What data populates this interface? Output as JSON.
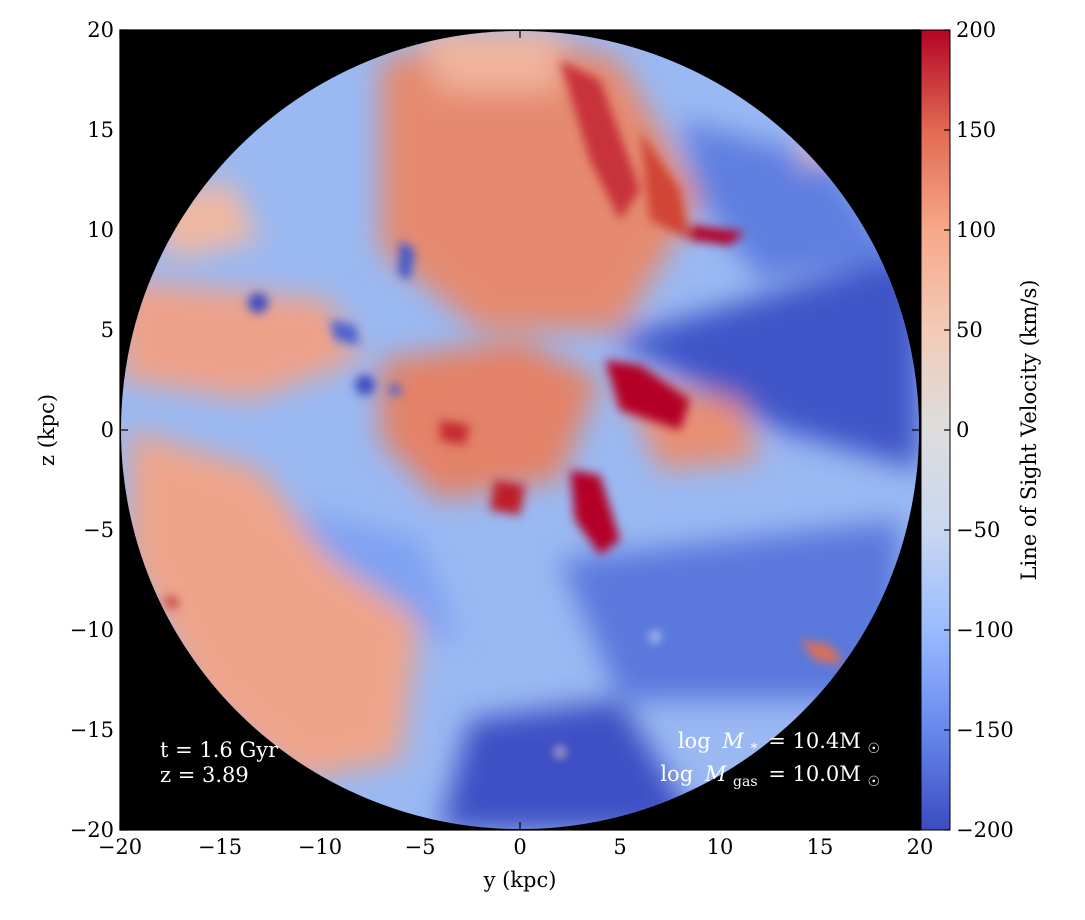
{
  "chart_data": {
    "type": "heatmap",
    "title": "",
    "xlabel": "y  (kpc)",
    "ylabel": "z  (kpc)",
    "xlim": [
      -20,
      20
    ],
    "ylim": [
      -20,
      20
    ],
    "xticks": [
      -20,
      -15,
      -10,
      -5,
      0,
      5,
      10,
      15,
      20
    ],
    "yticks": [
      20,
      15,
      10,
      5,
      0,
      -5,
      -10,
      -15,
      -20
    ],
    "xtick_labels": [
      "−20",
      "−15",
      "−10",
      "−5",
      "0",
      "5",
      "10",
      "15",
      "20"
    ],
    "ytick_labels": [
      "20",
      "15",
      "10",
      "5",
      "0",
      "−5",
      "−10",
      "−15",
      "−20"
    ],
    "background": "#000000",
    "region_radius_kpc": 20,
    "colorbar": {
      "label": "Line of Sight Velocity  (km/s)",
      "range": [
        -200,
        200
      ],
      "ticks": [
        200,
        150,
        100,
        50,
        0,
        -50,
        -100,
        -150,
        -200
      ],
      "tick_labels": [
        "200",
        "150",
        "100",
        "50",
        "0",
        "−50",
        "−100",
        "−150",
        "−200"
      ],
      "colormap": "coolwarm",
      "colors": [
        "#3b4cc0",
        "#6788ee",
        "#9abbff",
        "#c9d7f0",
        "#dddddd",
        "#f2cbb7",
        "#f7a889",
        "#e26952",
        "#b40426"
      ]
    },
    "annotations": {
      "time": "t = 1.6 Gyr",
      "redshift": "z = 3.89",
      "stellar_mass_prefix": "log",
      "stellar_mass_symbol": "M",
      "stellar_mass_sub": "*",
      "stellar_mass_value": "= 10.4M",
      "gas_mass_prefix": "log",
      "gas_mass_symbol": "M",
      "gas_mass_sub": "gas",
      "gas_mass_value": "= 10.0M",
      "solar_symbol": "☉"
    }
  }
}
